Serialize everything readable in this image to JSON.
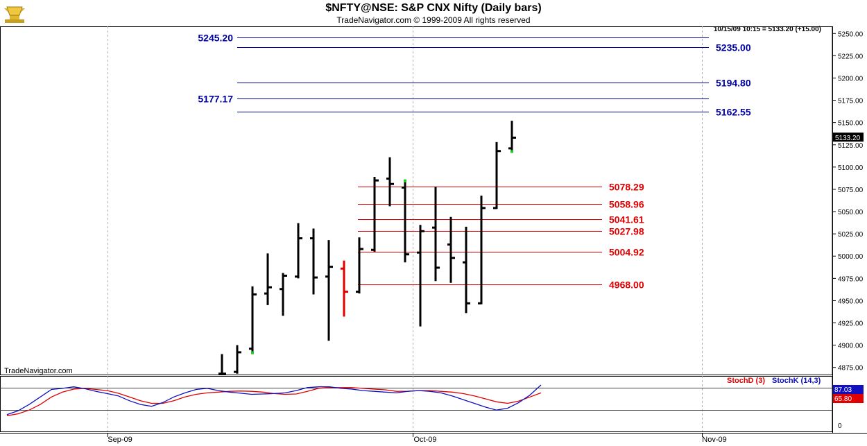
{
  "header": {
    "title": "$NFTY@NSE:  S&P CNX Nifty  (Daily bars)",
    "subtitle": "TradeNavigator.com © 1999-2009 All rights reserved",
    "quote": "10/15/09 10:15 = 5133.20 (+15.00)",
    "brand": "TradeNavigator.com",
    "logo_icon": "gold-trophy-logo-icon"
  },
  "colors": {
    "up_down_bar": "#000000",
    "highlight_bar": "#e00000",
    "marker": "#22cc22",
    "blue_level": "#0000a0",
    "red_level": "#e00000",
    "stoch_d": "#e00000",
    "stoch_k": "#1010c0",
    "gridline": "#b0b0b0"
  },
  "chart_data": [
    {
      "type": "bar",
      "subtype": "ohlc",
      "title": "$NFTY@NSE:  S&P CNX Nifty  (Daily bars)",
      "x_ticks": [
        "Sep-09",
        "Oct-09",
        "Nov-09"
      ],
      "y_ticks": [
        4875,
        4900,
        4925,
        4950,
        4975,
        5000,
        5025,
        5050,
        5075,
        5100,
        5125,
        5150,
        5175,
        5200,
        5225,
        5250
      ],
      "y_tick_labels": [
        "4875.00",
        "4900.00",
        "4925.00",
        "4950.00",
        "4975.00",
        "5000.00",
        "5025.00",
        "5050.00",
        "5075.00",
        "5100.00",
        "5125.00",
        "5150.00",
        "5175.00",
        "5200.00",
        "5225.00",
        "5250.00"
      ],
      "ylim": [
        4867,
        5258
      ],
      "last_price_label": "5133.20",
      "bars": [
        {
          "o": 4868,
          "h": 4890,
          "l": 4868,
          "c": 4868
        },
        {
          "o": 4870,
          "h": 4900,
          "l": 4868,
          "c": 4892
        },
        {
          "o": 4896,
          "h": 4966,
          "l": 4893,
          "c": 4957,
          "marker": "low"
        },
        {
          "o": 4958,
          "h": 5003,
          "l": 4945,
          "c": 4965
        },
        {
          "o": 4963,
          "h": 4981,
          "l": 4933,
          "c": 4978
        },
        {
          "o": 4977,
          "h": 5037,
          "l": 4975,
          "c": 5020
        },
        {
          "o": 5020,
          "h": 5031,
          "l": 4957,
          "c": 4976
        },
        {
          "o": 4977,
          "h": 5018,
          "l": 4905,
          "c": 4988
        },
        {
          "o": 4986,
          "h": 4995,
          "l": 4932,
          "c": 4960,
          "highlight": true
        },
        {
          "o": 4960,
          "h": 5021,
          "l": 4958,
          "c": 5008
        },
        {
          "o": 5007,
          "h": 5089,
          "l": 5005,
          "c": 5085
        },
        {
          "o": 5087,
          "h": 5111,
          "l": 5056,
          "c": 5081
        },
        {
          "o": 5077,
          "h": 5083,
          "l": 4993,
          "c": 5002,
          "marker": "high"
        },
        {
          "o": 5004,
          "h": 5035,
          "l": 4921,
          "c": 5028
        },
        {
          "o": 5032,
          "h": 5078,
          "l": 4972,
          "c": 4987
        },
        {
          "o": 5013,
          "h": 5044,
          "l": 4970,
          "c": 4998
        },
        {
          "o": 4993,
          "h": 5033,
          "l": 4936,
          "c": 4947
        },
        {
          "o": 4947,
          "h": 5068,
          "l": 4946,
          "c": 5054
        },
        {
          "o": 5054,
          "h": 5128,
          "l": 5053,
          "c": 5118
        },
        {
          "o": 5121,
          "h": 5152,
          "l": 5119,
          "c": 5133,
          "marker": "low"
        }
      ],
      "levels": [
        {
          "label": "5245.20",
          "value": 5245.2,
          "color": "blue",
          "label_side": "left"
        },
        {
          "label": "5235.00",
          "value": 5235.0,
          "color": "blue",
          "label_side": "right"
        },
        {
          "label": "5194.80",
          "value": 5194.8,
          "color": "blue",
          "label_side": "right"
        },
        {
          "label": "5177.17",
          "value": 5177.17,
          "color": "blue",
          "label_side": "left"
        },
        {
          "label": "5162.55",
          "value": 5162.55,
          "color": "blue",
          "label_side": "right"
        },
        {
          "label": "5078.29",
          "value": 5078.29,
          "color": "red",
          "label_side": "right"
        },
        {
          "label": "5058.96",
          "value": 5058.96,
          "color": "red",
          "label_side": "right"
        },
        {
          "label": "5041.61",
          "value": 5041.61,
          "color": "red",
          "label_side": "right"
        },
        {
          "label": "5027.98",
          "value": 5027.98,
          "color": "red",
          "label_side": "right"
        },
        {
          "label": "5004.92",
          "value": 5004.92,
          "color": "red",
          "label_side": "right"
        },
        {
          "label": "4968.00",
          "value": 4968.0,
          "color": "red",
          "label_side": "right"
        }
      ],
      "grid": true
    },
    {
      "type": "line",
      "title": "",
      "y_ticks": [
        0
      ],
      "y_tick_labels": [
        "0"
      ],
      "ylim": [
        0,
        100
      ],
      "reference_lines": [
        80,
        20
      ],
      "legend": [
        "StochD (3)",
        "StochK (14,3)"
      ],
      "last_values": {
        "stoch_d": "65.80",
        "stoch_k": "87.03"
      },
      "series": [
        {
          "name": "StochD (3)",
          "values": [
            5,
            10,
            20,
            35,
            55,
            68,
            76,
            78,
            75,
            72,
            65,
            55,
            45,
            38,
            38,
            45,
            55,
            62,
            66,
            68,
            70,
            71,
            70,
            68,
            64,
            62,
            63,
            70,
            78,
            80,
            80,
            80,
            78,
            76,
            74,
            70,
            70,
            72,
            72,
            70,
            68,
            64,
            58,
            50,
            42,
            38,
            44,
            55,
            66
          ]
        },
        {
          "name": "StochK (14,3)",
          "values": [
            8,
            18,
            35,
            55,
            75,
            78,
            82,
            77,
            70,
            64,
            58,
            45,
            35,
            30,
            40,
            55,
            66,
            75,
            78,
            72,
            68,
            65,
            62,
            63,
            64,
            66,
            72,
            80,
            82,
            82,
            78,
            76,
            72,
            70,
            68,
            66,
            70,
            72,
            70,
            66,
            58,
            48,
            38,
            28,
            20,
            25,
            40,
            60,
            87
          ]
        }
      ]
    }
  ]
}
